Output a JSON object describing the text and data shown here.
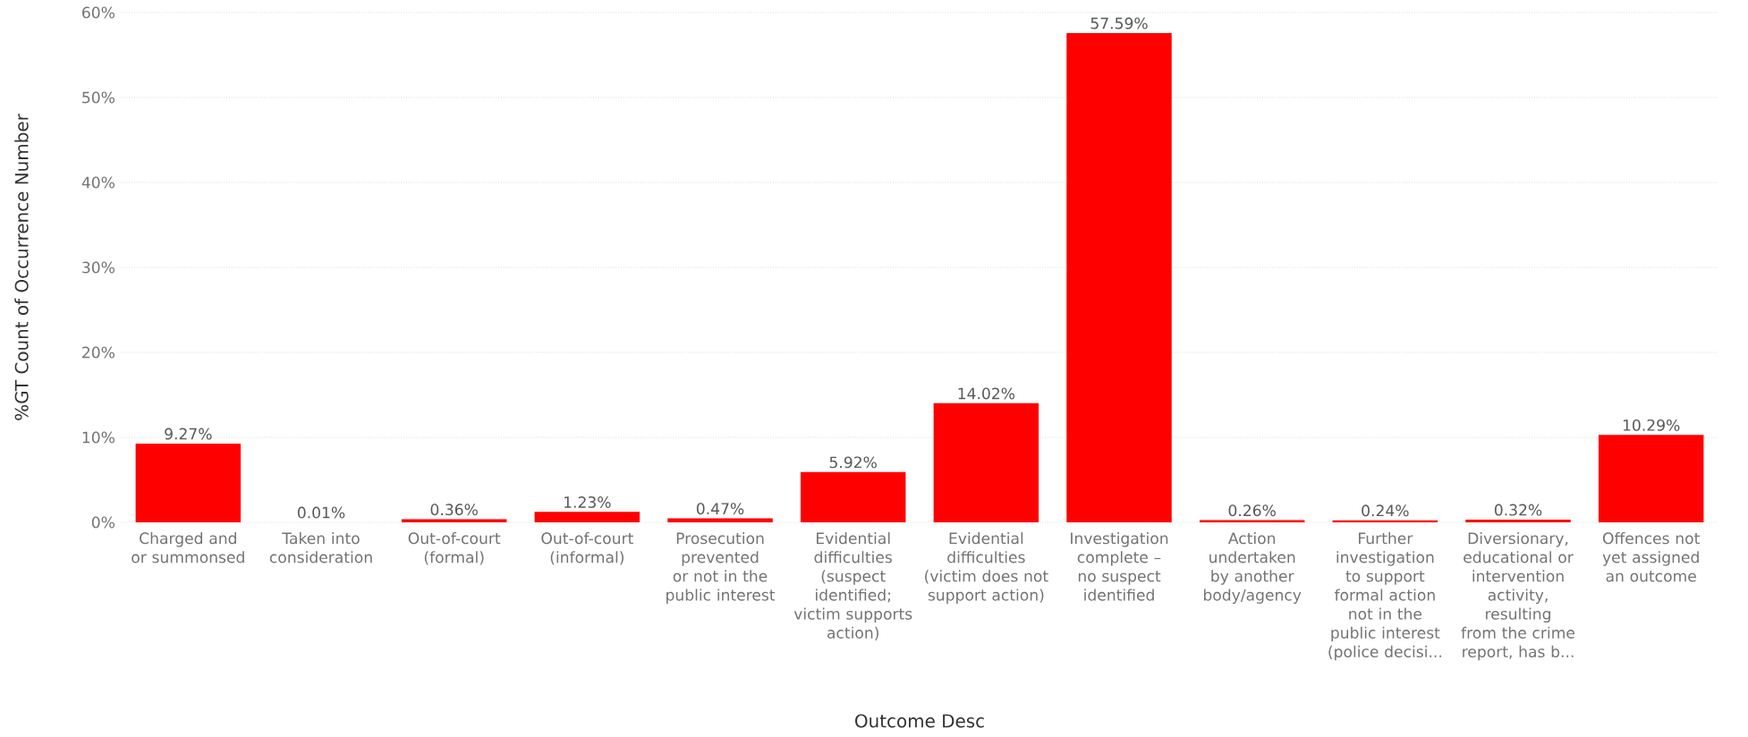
{
  "chart_data": {
    "type": "bar",
    "xlabel": "Outcome Desc",
    "ylabel": "%GT Count of Occurrence Number",
    "categories": [
      "Charged and or summonsed",
      "Taken into consideration",
      "Out-of-court (formal)",
      "Out-of-court (informal)",
      "Prosecution prevented or not in the public interest",
      "Evidential difficulties (suspect identified; victim supports action)",
      "Evidential difficulties (victim does not support action)",
      "Investigation complete – no suspect identified",
      "Action undertaken by another body/agency",
      "Further investigation to support formal action not in the public interest (police decisi...",
      "Diversionary, educational or intervention activity, resulting from the crime report, has b...",
      "Offences not yet assigned an outcome"
    ],
    "values": [
      9.27,
      0.01,
      0.36,
      1.23,
      0.47,
      5.92,
      14.02,
      57.59,
      0.26,
      0.24,
      0.32,
      10.29
    ],
    "value_labels": [
      "9.27%",
      "0.01%",
      "0.36%",
      "1.23%",
      "0.47%",
      "5.92%",
      "14.02%",
      "57.59%",
      "0.26%",
      "0.24%",
      "0.32%",
      "10.29%"
    ],
    "color": "#ff0000",
    "ylim": [
      0,
      60
    ],
    "yticks": [
      {
        "value": 0,
        "label": "0%"
      },
      {
        "value": 10,
        "label": "10%"
      },
      {
        "value": 20,
        "label": "20%"
      },
      {
        "value": 30,
        "label": "30%"
      },
      {
        "value": 40,
        "label": "40%"
      },
      {
        "value": 50,
        "label": "50%"
      },
      {
        "value": 60,
        "label": "60%"
      }
    ],
    "grid": "y"
  }
}
